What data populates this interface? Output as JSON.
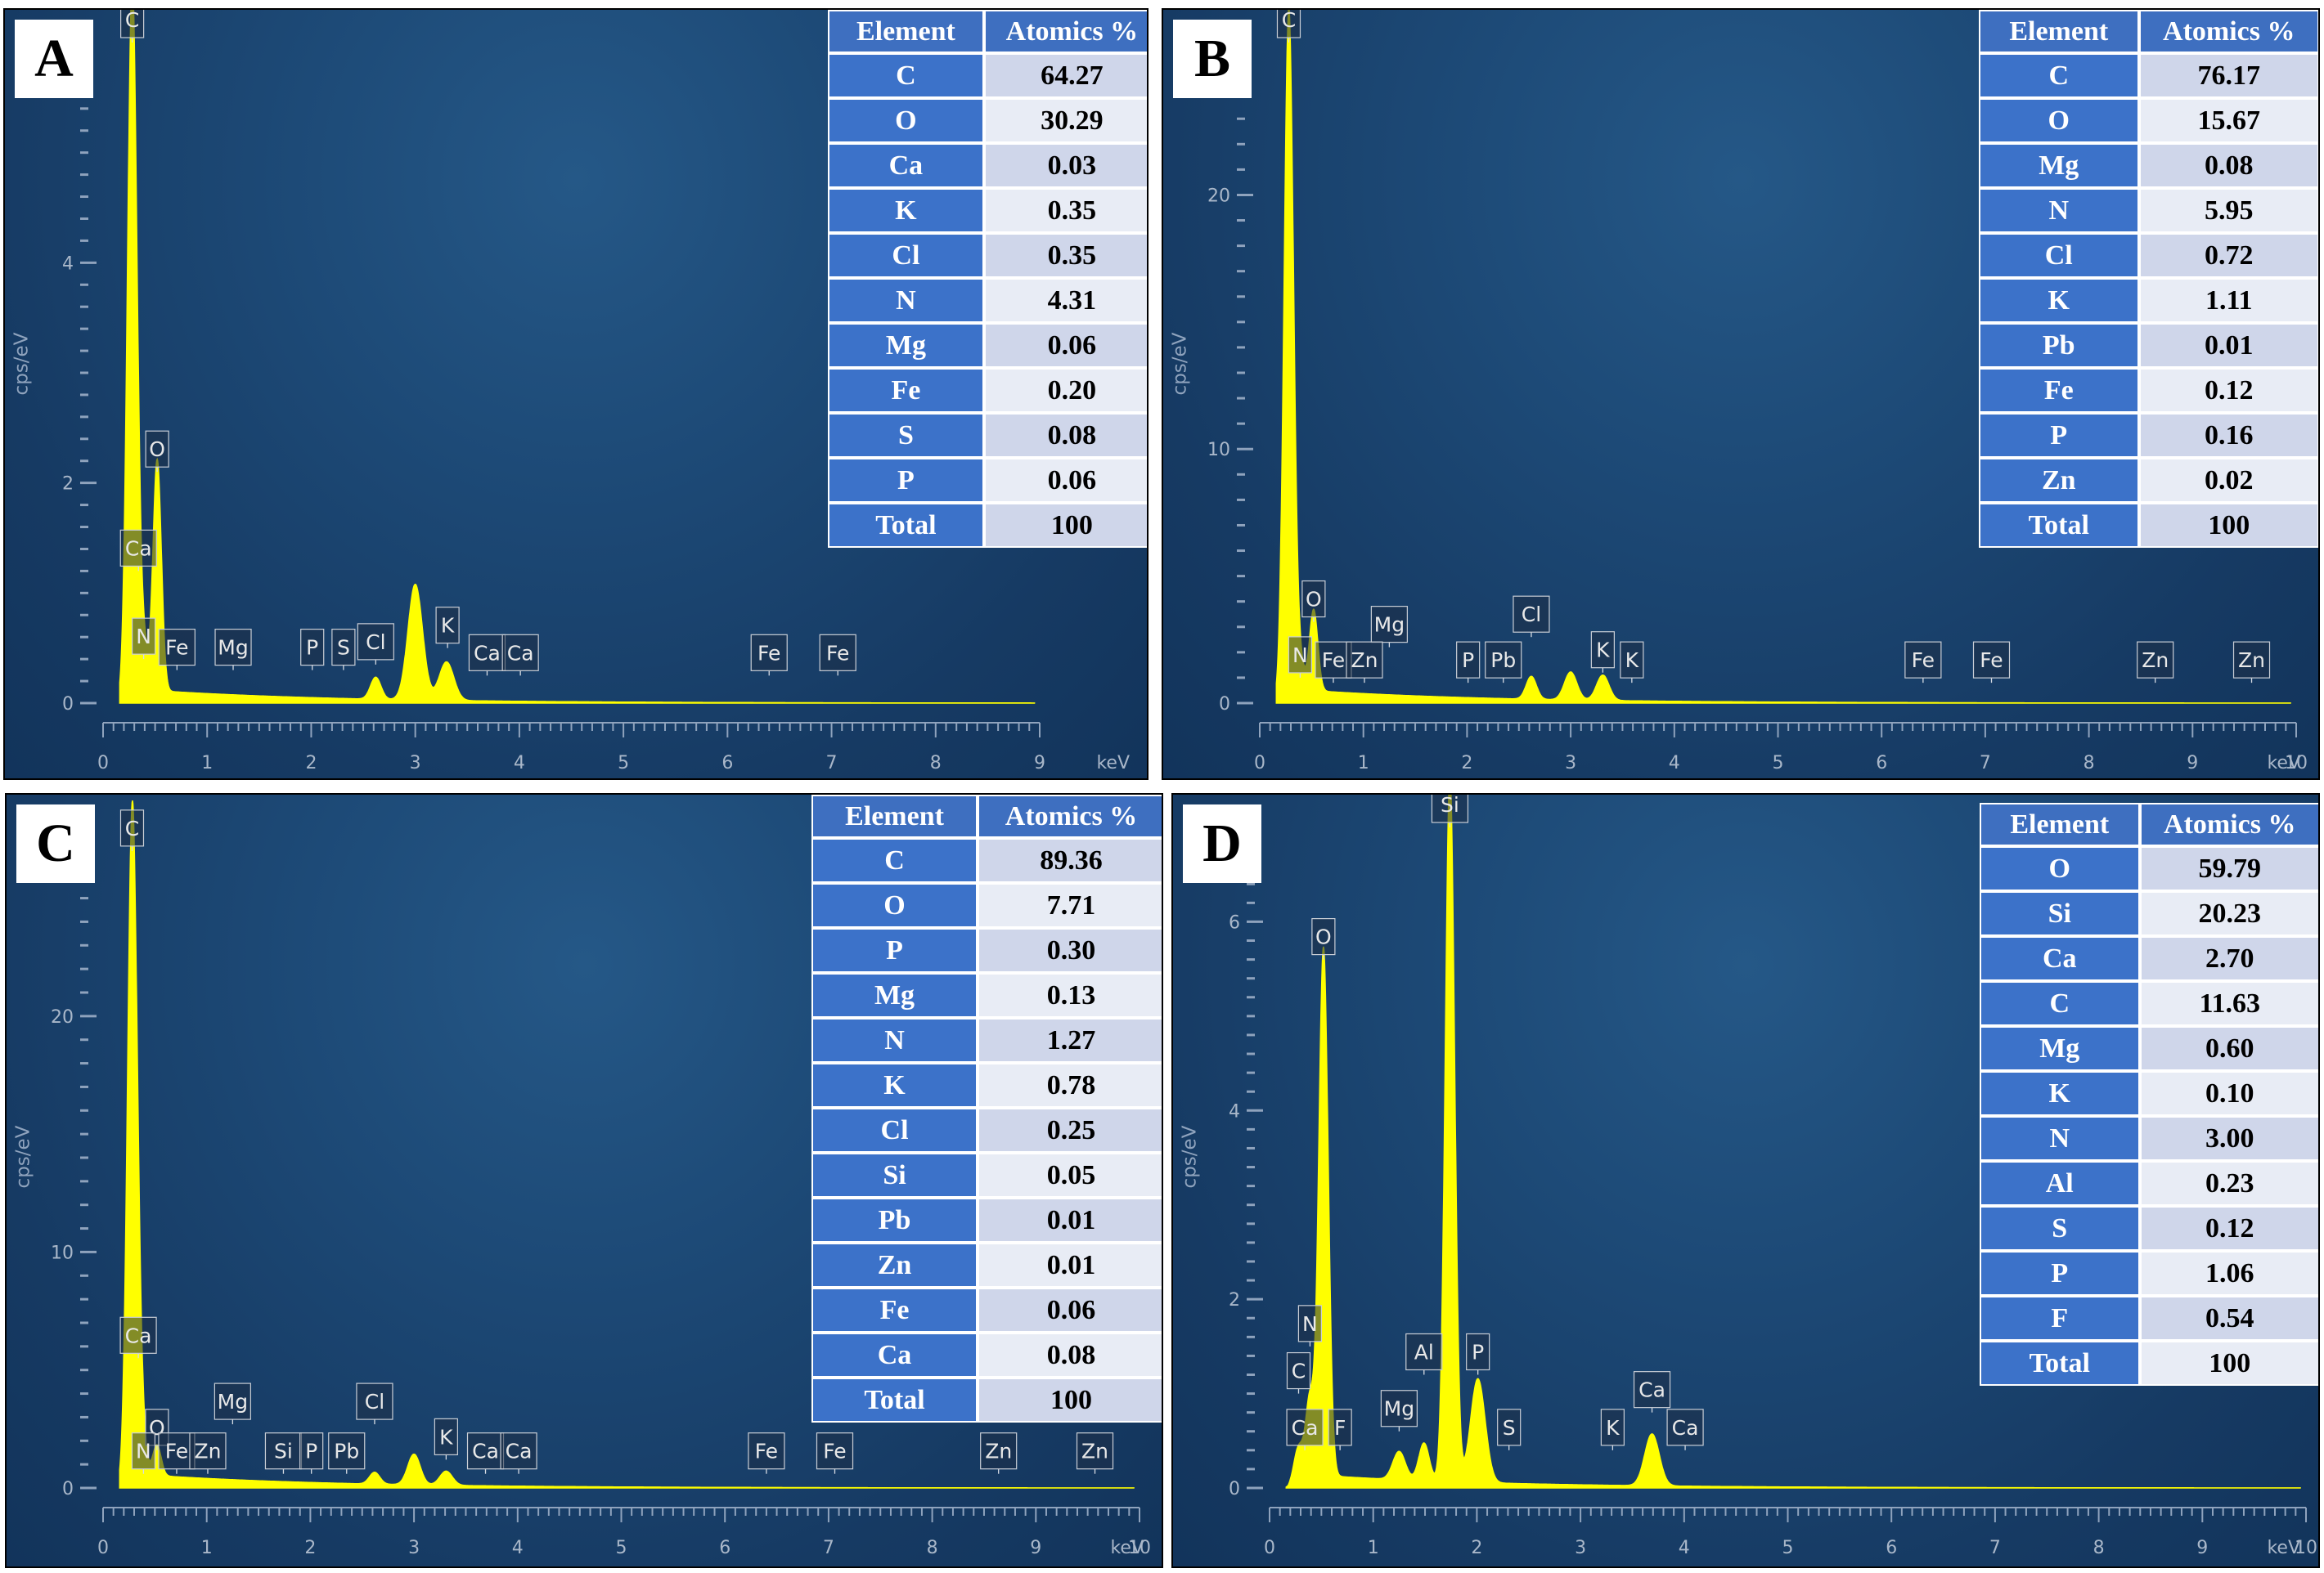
{
  "ylabel": "cps/eV",
  "xunit": "keV",
  "table_headers": [
    "Element",
    "Atomics %"
  ],
  "colors": {
    "spectrum": "#ffff00",
    "tick": "#8fa3bd",
    "header": "#3e6fc0"
  },
  "chart_data": [
    {
      "panel": "A",
      "type": "area",
      "xlabel": "keV",
      "ylabel": "cps/eV",
      "xlim": [
        0,
        9
      ],
      "ylim": [
        0,
        6
      ],
      "xticks": [
        0,
        1,
        2,
        3,
        4,
        5,
        6,
        7,
        8,
        9
      ],
      "yticks": [
        0,
        2,
        4
      ],
      "peaks": [
        {
          "x": 0.28,
          "y": 6.5,
          "w": 0.045
        },
        {
          "x": 0.52,
          "y": 2.1,
          "w": 0.04
        },
        {
          "x": 3.0,
          "y": 1.05,
          "w": 0.07
        },
        {
          "x": 3.3,
          "y": 0.35,
          "w": 0.07
        },
        {
          "x": 2.62,
          "y": 0.2,
          "w": 0.05
        },
        {
          "x": 0.39,
          "y": 0.4,
          "w": 0.04
        }
      ],
      "markers": [
        {
          "label": "C",
          "x": 0.28,
          "y": 6.5
        },
        {
          "label": "O",
          "x": 0.52,
          "y": 2.1
        },
        {
          "label": "Ca",
          "x": 0.34,
          "y": 1.2
        },
        {
          "label": "N",
          "x": 0.39,
          "y": 0.4
        },
        {
          "label": "Fe",
          "x": 0.71,
          "y": 0.3
        },
        {
          "label": "Mg",
          "x": 1.25,
          "y": 0.3
        },
        {
          "label": "P",
          "x": 2.01,
          "y": 0.3
        },
        {
          "label": "S",
          "x": 2.31,
          "y": 0.3
        },
        {
          "label": "Cl",
          "x": 2.62,
          "y": 0.35
        },
        {
          "label": "K",
          "x": 3.31,
          "y": 0.5
        },
        {
          "label": "Ca",
          "x": 3.69,
          "y": 0.25
        },
        {
          "label": "Ca",
          "x": 4.01,
          "y": 0.25
        },
        {
          "label": "Fe",
          "x": 6.4,
          "y": 0.25
        },
        {
          "label": "Fe",
          "x": 7.06,
          "y": 0.25
        }
      ],
      "table": [
        [
          "C",
          "64.27"
        ],
        [
          "O",
          "30.29"
        ],
        [
          "Ca",
          "0.03"
        ],
        [
          "K",
          "0.35"
        ],
        [
          "Cl",
          "0.35"
        ],
        [
          "N",
          "4.31"
        ],
        [
          "Mg",
          "0.06"
        ],
        [
          "Fe",
          "0.20"
        ],
        [
          "S",
          "0.08"
        ],
        [
          "P",
          "0.06"
        ],
        [
          "Total",
          "100"
        ]
      ]
    },
    {
      "panel": "B",
      "type": "area",
      "xlabel": "keV",
      "ylabel": "cps/eV",
      "xlim": [
        0,
        10
      ],
      "ylim": [
        0,
        26
      ],
      "xticks": [
        0,
        1,
        2,
        3,
        4,
        5,
        6,
        7,
        8,
        9,
        10
      ],
      "yticks": [
        0,
        10,
        20
      ],
      "peaks": [
        {
          "x": 0.28,
          "y": 27,
          "w": 0.045
        },
        {
          "x": 0.52,
          "y": 3.2,
          "w": 0.04
        },
        {
          "x": 3.0,
          "y": 1.1,
          "w": 0.06
        },
        {
          "x": 3.31,
          "y": 1.0,
          "w": 0.06
        },
        {
          "x": 2.62,
          "y": 0.9,
          "w": 0.05
        },
        {
          "x": 0.39,
          "y": 1.0,
          "w": 0.04
        }
      ],
      "markers": [
        {
          "label": "C",
          "x": 0.28,
          "y": 27
        },
        {
          "label": "O",
          "x": 0.52,
          "y": 3.2
        },
        {
          "label": "N",
          "x": 0.39,
          "y": 1.0
        },
        {
          "label": "Mg",
          "x": 1.25,
          "y": 2.2
        },
        {
          "label": "Fe",
          "x": 0.71,
          "y": 0.8
        },
        {
          "label": "Zn",
          "x": 1.01,
          "y": 0.8
        },
        {
          "label": "P",
          "x": 2.01,
          "y": 0.8
        },
        {
          "label": "Pb",
          "x": 2.35,
          "y": 0.8
        },
        {
          "label": "Cl",
          "x": 2.62,
          "y": 2.6
        },
        {
          "label": "K",
          "x": 3.31,
          "y": 1.2
        },
        {
          "label": "K",
          "x": 3.59,
          "y": 0.8
        },
        {
          "label": "Fe",
          "x": 6.4,
          "y": 0.8
        },
        {
          "label": "Fe",
          "x": 7.06,
          "y": 0.8
        },
        {
          "label": "Zn",
          "x": 8.64,
          "y": 0.8
        },
        {
          "label": "Zn",
          "x": 9.57,
          "y": 0.8
        }
      ],
      "table": [
        [
          "C",
          "76.17"
        ],
        [
          "O",
          "15.67"
        ],
        [
          "Mg",
          "0.08"
        ],
        [
          "N",
          "5.95"
        ],
        [
          "Cl",
          "0.72"
        ],
        [
          "K",
          "1.11"
        ],
        [
          "Pb",
          "0.01"
        ],
        [
          "Fe",
          "0.12"
        ],
        [
          "P",
          "0.16"
        ],
        [
          "Zn",
          "0.02"
        ],
        [
          "Total",
          "100"
        ]
      ]
    },
    {
      "panel": "C",
      "type": "area",
      "xlabel": "keV",
      "ylabel": "cps/eV",
      "xlim": [
        0,
        10
      ],
      "ylim": [
        0,
        28
      ],
      "xticks": [
        0,
        1,
        2,
        3,
        4,
        5,
        6,
        7,
        8,
        9,
        10
      ],
      "yticks": [
        0,
        10,
        20
      ],
      "peaks": [
        {
          "x": 0.28,
          "y": 27,
          "w": 0.045
        },
        {
          "x": 0.52,
          "y": 1.3,
          "w": 0.04
        },
        {
          "x": 3.0,
          "y": 1.3,
          "w": 0.06
        },
        {
          "x": 3.31,
          "y": 0.6,
          "w": 0.06
        },
        {
          "x": 2.62,
          "y": 0.5,
          "w": 0.05
        },
        {
          "x": 0.34,
          "y": 3.5,
          "w": 0.05
        }
      ],
      "markers": [
        {
          "label": "C",
          "x": 0.28,
          "y": 27
        },
        {
          "label": "Ca",
          "x": 0.34,
          "y": 5.5
        },
        {
          "label": "O",
          "x": 0.52,
          "y": 1.6
        },
        {
          "label": "N",
          "x": 0.39,
          "y": 0.6
        },
        {
          "label": "Fe",
          "x": 0.71,
          "y": 0.6
        },
        {
          "label": "Zn",
          "x": 1.01,
          "y": 0.6
        },
        {
          "label": "Mg",
          "x": 1.25,
          "y": 2.7
        },
        {
          "label": "Si",
          "x": 1.74,
          "y": 0.6
        },
        {
          "label": "P",
          "x": 2.01,
          "y": 0.6
        },
        {
          "label": "Pb",
          "x": 2.35,
          "y": 0.6
        },
        {
          "label": "Cl",
          "x": 2.62,
          "y": 2.7
        },
        {
          "label": "K",
          "x": 3.31,
          "y": 1.2
        },
        {
          "label": "Ca",
          "x": 3.69,
          "y": 0.6
        },
        {
          "label": "Ca",
          "x": 4.01,
          "y": 0.6
        },
        {
          "label": "Fe",
          "x": 6.4,
          "y": 0.6
        },
        {
          "label": "Fe",
          "x": 7.06,
          "y": 0.6
        },
        {
          "label": "Zn",
          "x": 8.64,
          "y": 0.6
        },
        {
          "label": "Zn",
          "x": 9.57,
          "y": 0.6
        }
      ],
      "table": [
        [
          "C",
          "89.36"
        ],
        [
          "O",
          "7.71"
        ],
        [
          "P",
          "0.30"
        ],
        [
          "Mg",
          "0.13"
        ],
        [
          "N",
          "1.27"
        ],
        [
          "K",
          "0.78"
        ],
        [
          "Cl",
          "0.25"
        ],
        [
          "Si",
          "0.05"
        ],
        [
          "Pb",
          "0.01"
        ],
        [
          "Zn",
          "0.01"
        ],
        [
          "Fe",
          "0.06"
        ],
        [
          "Ca",
          "0.08"
        ],
        [
          "Total",
          "100"
        ]
      ]
    },
    {
      "panel": "D",
      "type": "area",
      "xlabel": "keV",
      "ylabel": "cps/eV",
      "xlim": [
        0,
        10
      ],
      "ylim": [
        0,
        7
      ],
      "xticks": [
        0,
        1,
        2,
        3,
        4,
        5,
        6,
        7,
        8,
        9,
        10
      ],
      "yticks": [
        0,
        2,
        4,
        6
      ],
      "peaks": [
        {
          "x": 1.74,
          "y": 7.5,
          "w": 0.045
        },
        {
          "x": 0.52,
          "y": 5.6,
          "w": 0.045
        },
        {
          "x": 2.01,
          "y": 1.1,
          "w": 0.07
        },
        {
          "x": 3.69,
          "y": 0.55,
          "w": 0.07
        },
        {
          "x": 1.25,
          "y": 0.3,
          "w": 0.06
        },
        {
          "x": 1.49,
          "y": 0.4,
          "w": 0.05
        },
        {
          "x": 0.28,
          "y": 0.35,
          "w": 0.045
        },
        {
          "x": 0.39,
          "y": 0.8,
          "w": 0.04
        }
      ],
      "markers": [
        {
          "label": "Si",
          "x": 1.74,
          "y": 7.5
        },
        {
          "label": "O",
          "x": 0.52,
          "y": 5.6
        },
        {
          "label": "N",
          "x": 0.39,
          "y": 1.5
        },
        {
          "label": "C",
          "x": 0.28,
          "y": 1.0
        },
        {
          "label": "Ca",
          "x": 0.34,
          "y": 0.4
        },
        {
          "label": "F",
          "x": 0.68,
          "y": 0.4
        },
        {
          "label": "Mg",
          "x": 1.25,
          "y": 0.6
        },
        {
          "label": "Al",
          "x": 1.49,
          "y": 1.2
        },
        {
          "label": "P",
          "x": 2.01,
          "y": 1.2
        },
        {
          "label": "S",
          "x": 2.31,
          "y": 0.4
        },
        {
          "label": "K",
          "x": 3.31,
          "y": 0.4
        },
        {
          "label": "Ca",
          "x": 3.69,
          "y": 0.8
        },
        {
          "label": "Ca",
          "x": 4.01,
          "y": 0.4
        }
      ],
      "table": [
        [
          "O",
          "59.79"
        ],
        [
          "Si",
          "20.23"
        ],
        [
          "Ca",
          "2.70"
        ],
        [
          "C",
          "11.63"
        ],
        [
          "Mg",
          "0.60"
        ],
        [
          "K",
          "0.10"
        ],
        [
          "N",
          "3.00"
        ],
        [
          "Al",
          "0.23"
        ],
        [
          "S",
          "0.12"
        ],
        [
          "P",
          "1.06"
        ],
        [
          "F",
          "0.54"
        ],
        [
          "Total",
          "100"
        ]
      ]
    }
  ]
}
